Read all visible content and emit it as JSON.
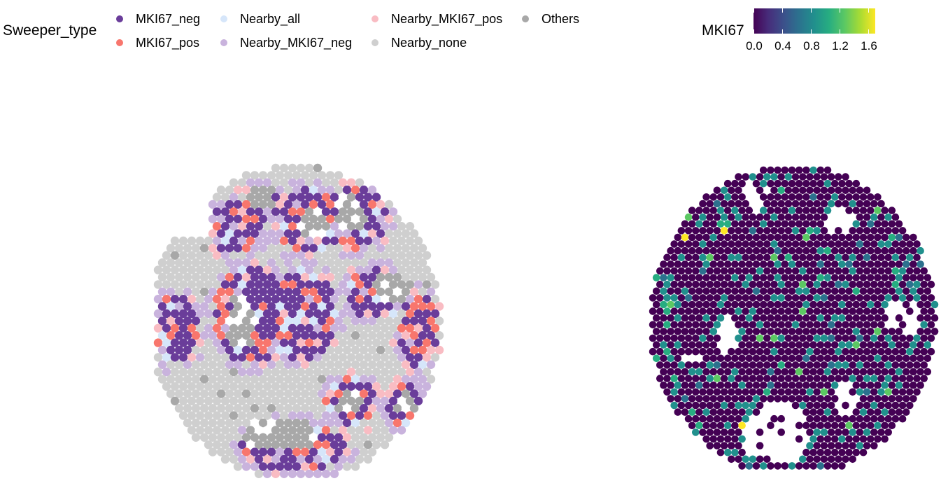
{
  "chart_data": [
    {
      "type": "scatter",
      "title": "",
      "legend": {
        "title": "Sweeper_type",
        "placement": "top",
        "entries": [
          {
            "label": "MKI67_neg",
            "color": "#6a3d9a"
          },
          {
            "label": "MKI67_pos",
            "color": "#f8766d"
          },
          {
            "label": "Nearby_all",
            "color": "#d6e6fa"
          },
          {
            "label": "Nearby_MKI67_neg",
            "color": "#c9b3dd"
          },
          {
            "label": "Nearby_MKI67_pos",
            "color": "#f9bcc3"
          },
          {
            "label": "Nearby_none",
            "color": "#cfcfcf"
          },
          {
            "label": "Others",
            "color": "#a8a8a8"
          }
        ]
      },
      "grid": false,
      "axes": "none"
    },
    {
      "type": "heatmap",
      "title": "",
      "colorbar": {
        "title": "MKI67",
        "range": [
          0,
          1.7
        ],
        "ticks": [
          "0.0",
          "0.4",
          "0.8",
          "1.2",
          "1.6"
        ],
        "tick_values": [
          0,
          0.4,
          0.8,
          1.2,
          1.6
        ],
        "palette": "viridis",
        "placement": "top-right"
      },
      "grid": false,
      "axes": "none"
    }
  ]
}
